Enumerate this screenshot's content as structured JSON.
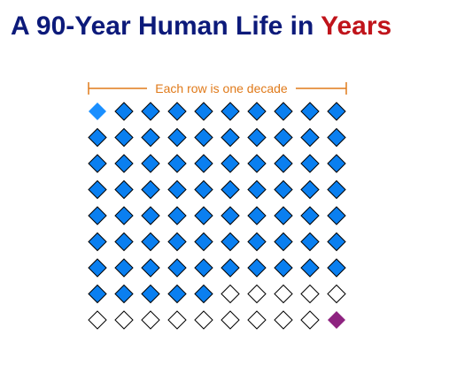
{
  "title": {
    "main": "A 90-Year Human Life in ",
    "accent": "Years"
  },
  "annotation": {
    "label": "Each row is one decade"
  },
  "grid": {
    "rows": 9,
    "columns": 10,
    "total_years": 90,
    "cells": [
      "highlight",
      "lived",
      "lived",
      "lived",
      "lived",
      "lived",
      "lived",
      "lived",
      "lived",
      "lived",
      "lived",
      "lived",
      "lived",
      "lived",
      "lived",
      "lived",
      "lived",
      "lived",
      "lived",
      "lived",
      "lived",
      "lived",
      "lived",
      "lived",
      "lived",
      "lived",
      "lived",
      "lived",
      "lived",
      "lived",
      "lived",
      "lived",
      "lived",
      "lived",
      "lived",
      "lived",
      "lived",
      "lived",
      "lived",
      "lived",
      "lived",
      "lived",
      "lived",
      "lived",
      "lived",
      "lived",
      "lived",
      "lived",
      "lived",
      "lived",
      "lived",
      "lived",
      "lived",
      "lived",
      "lived",
      "lived",
      "lived",
      "lived",
      "lived",
      "lived",
      "lived",
      "lived",
      "lived",
      "lived",
      "lived",
      "lived",
      "lived",
      "lived",
      "lived",
      "lived",
      "lived",
      "lived",
      "lived",
      "lived",
      "lived",
      "remaining",
      "remaining",
      "remaining",
      "remaining",
      "remaining",
      "remaining",
      "remaining",
      "remaining",
      "remaining",
      "remaining",
      "remaining",
      "remaining",
      "remaining",
      "remaining",
      "final"
    ]
  },
  "colors": {
    "title_main": "#0c1a7a",
    "title_accent": "#c0141b",
    "annotation": "#e07a1a",
    "lived": "#0a7ff0",
    "highlight": "#1a8fff",
    "remaining": "#ffffff",
    "final": "#8e2380",
    "stroke": "#000000"
  }
}
